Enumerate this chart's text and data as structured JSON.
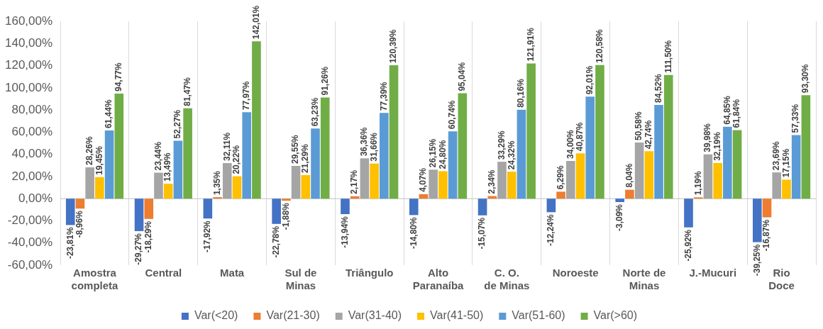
{
  "chart_data": {
    "type": "bar",
    "categories": [
      "Amostra completa",
      "Central",
      "Mata",
      "Sul de Minas",
      "Triângulo",
      "Alto Paranaíba",
      "C. O. de Minas",
      "Noroeste",
      "Norte de Minas",
      "J.-Mucuri",
      "Rio Doce"
    ],
    "series": [
      {
        "name": "Var(<20)",
        "color": "#4472c4",
        "values": [
          -23.81,
          -29.27,
          -17.92,
          -22.78,
          -13.94,
          -14.8,
          -15.07,
          -12.24,
          -3.09,
          -25.92,
          -39.25
        ],
        "value_labels": [
          "-23,81%",
          "-29,27%",
          "-17,92%",
          "-22,78%",
          "-13,94%",
          "-14,80%",
          "-15,07%",
          "-12,24%",
          "-3,09%",
          "-25,92%",
          "-39,25%"
        ]
      },
      {
        "name": "Var(21-30)",
        "color": "#ed7d31",
        "values": [
          -8.96,
          -18.29,
          1.35,
          -1.88,
          2.17,
          4.07,
          2.34,
          6.29,
          8.04,
          1.19,
          -16.87
        ],
        "value_labels": [
          "-8,96%",
          "-18,29%",
          "1,35%",
          "-1,88%",
          "2,17%",
          "4,07%",
          "2,34%",
          "6,29%",
          "8,04%",
          "1,19%",
          "-16,87%"
        ]
      },
      {
        "name": "Var(31-40)",
        "color": "#a5a5a5",
        "values": [
          28.26,
          23.44,
          32.11,
          29.55,
          36.36,
          26.15,
          33.29,
          34.0,
          50.58,
          39.98,
          23.69
        ],
        "value_labels": [
          "28,26%",
          "23,44%",
          "32,11%",
          "29,55%",
          "36,36%",
          "26,15%",
          "33,29%",
          "34,00%",
          "50,58%",
          "39,98%",
          "23,69%"
        ]
      },
      {
        "name": "Var(41-50)",
        "color": "#ffc000",
        "values": [
          19.45,
          13.49,
          20.22,
          21.29,
          31.66,
          24.8,
          24.32,
          40.87,
          42.74,
          32.19,
          17.15
        ],
        "value_labels": [
          "19,45%",
          "13,49%",
          "20,22%",
          "21,29%",
          "31,66%",
          "24,80%",
          "24,32%",
          "40,87%",
          "42,74%",
          "32,19%",
          "17,15%"
        ]
      },
      {
        "name": "Var(51-60)",
        "color": "#5b9bd5",
        "values": [
          61.44,
          52.27,
          77.97,
          63.23,
          77.39,
          60.74,
          80.16,
          92.01,
          84.52,
          64.85,
          57.33
        ],
        "value_labels": [
          "61,44%",
          "52,27%",
          "77,97%",
          "63,23%",
          "77,39%",
          "60,74%",
          "80,16%",
          "92,01%",
          "84,52%",
          "64,85%",
          "57,33%"
        ]
      },
      {
        "name": "Var(>60)",
        "color": "#70ad47",
        "values": [
          94.77,
          81.47,
          142.01,
          91.26,
          120.39,
          95.04,
          121.91,
          120.58,
          111.5,
          61.84,
          93.3
        ],
        "value_labels": [
          "94,77%",
          "81,47%",
          "142,01%",
          "91,26%",
          "120,39%",
          "95,04%",
          "121,91%",
          "120,58%",
          "111,50%",
          "61,84%",
          "93,30%"
        ]
      }
    ],
    "ylim": [
      -60,
      160
    ],
    "yticks": [
      {
        "value": -60,
        "label": "-60,00%"
      },
      {
        "value": -40,
        "label": "-40,00%"
      },
      {
        "value": -20,
        "label": "-20,00%"
      },
      {
        "value": 0,
        "label": "0,00%"
      },
      {
        "value": 20,
        "label": "20,00%"
      },
      {
        "value": 40,
        "label": "40,00%"
      },
      {
        "value": 60,
        "label": "60,00%"
      },
      {
        "value": 80,
        "label": "80,00%"
      },
      {
        "value": 100,
        "label": "100,00%"
      },
      {
        "value": 120,
        "label": "120,00%"
      },
      {
        "value": 140,
        "label": "140,00%"
      },
      {
        "value": 160,
        "label": "160,00%"
      }
    ],
    "grid": "x",
    "legend": "bottom"
  }
}
